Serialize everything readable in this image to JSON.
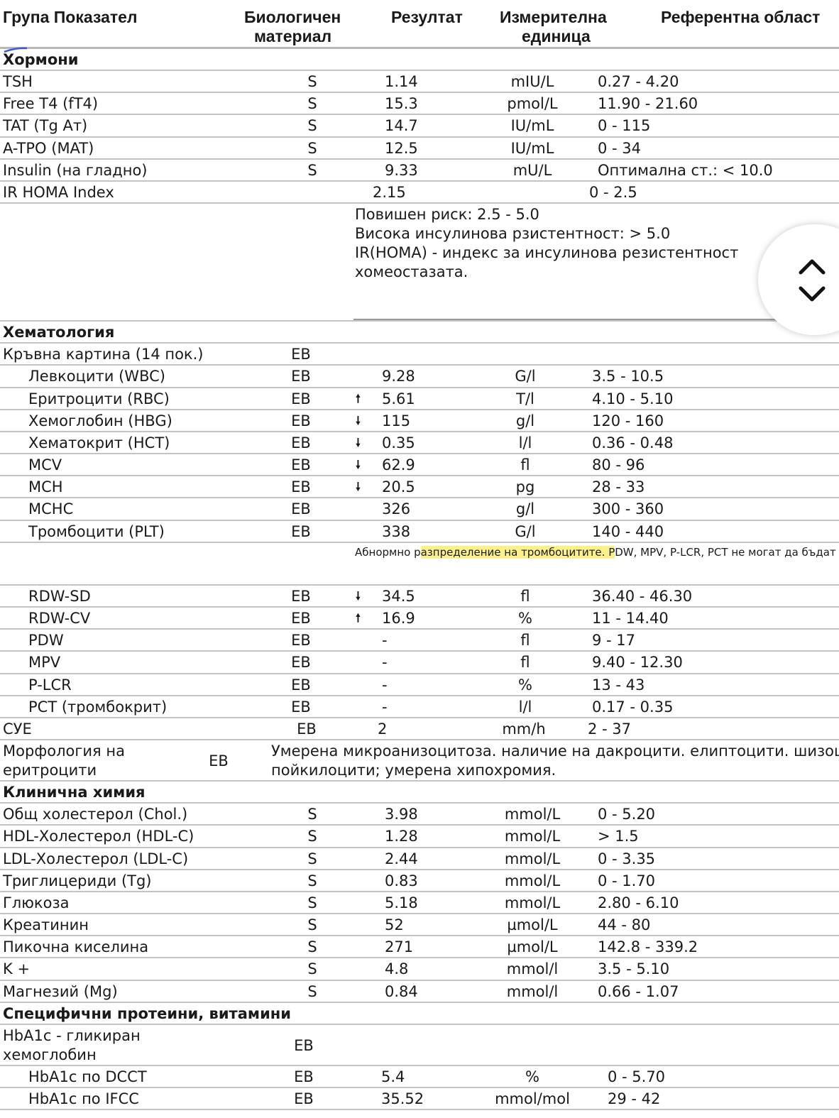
{
  "header": {
    "col_name": "Група Показател",
    "col_material": [
      "Биологичен",
      "материал"
    ],
    "col_result": "Резултат",
    "col_unit": [
      "Измерителна",
      "единица"
    ],
    "col_ref": "Референтна област"
  },
  "sections": [
    {
      "title": "Хормони",
      "rows": [
        {
          "name": "TSH",
          "material": "S",
          "result": "1.14",
          "unit": "mIU/L",
          "ref": "0.27 - 4.20"
        },
        {
          "name": "Free T4 (fT4)",
          "material": "S",
          "result": "15.3",
          "unit": "pmol/L",
          "ref": "11.90 - 21.60"
        },
        {
          "name": "TAT (Tg Aт)",
          "material": "S",
          "result": "14.7",
          "unit": "IU/mL",
          "ref": "0 - 115"
        },
        {
          "name": "A-TPO (MAT)",
          "material": "S",
          "result": "12.5",
          "unit": "IU/mL",
          "ref": "0 - 34"
        },
        {
          "name": "Insulin (на гладно)",
          "material": "S",
          "result": "9.33",
          "unit": "mU/L",
          "ref": "Оптимална ст.: < 10.0"
        },
        {
          "name": "IR HOMA Index",
          "result": "2.15",
          "ref": "0 - 2.5",
          "kind": "homa"
        },
        {
          "kind": "notes",
          "lines": [
            "Повишен риск: 2.5 - 5.0",
            "Висока инсулинова рзистентност: > 5.0",
            "IR(HOMA) - индекс за инсулинова резистентност",
            "хомеостазата."
          ]
        }
      ]
    },
    {
      "title": "Хематология",
      "rows": [
        {
          "name": "Кръвна картина (14 пок.)",
          "material": "ЕВ"
        },
        {
          "name": "Левкоцити (WBC)",
          "indent": true,
          "material": "ЕВ",
          "result": "9.28",
          "unit": "G/l",
          "ref": "3.5 - 10.5"
        },
        {
          "name": "Еритроцити (RBC)",
          "indent": true,
          "material": "ЕВ",
          "flag": "up",
          "result": "5.61",
          "unit": "T/l",
          "ref": "4.10 - 5.10"
        },
        {
          "name": "Хемоглобин (HBG)",
          "indent": true,
          "material": "ЕВ",
          "flag": "down",
          "result": "115",
          "unit": "g/l",
          "ref": "120 - 160"
        },
        {
          "name": "Хематокрит (HCT)",
          "indent": true,
          "material": "ЕВ",
          "flag": "down",
          "result": "0.35",
          "unit": "l/l",
          "ref": "0.36 - 0.48"
        },
        {
          "name": "MCV",
          "indent": true,
          "material": "ЕВ",
          "flag": "down",
          "result": "62.9",
          "unit": "fl",
          "ref": "80 - 96"
        },
        {
          "name": "MCH",
          "indent": true,
          "material": "ЕВ",
          "flag": "down",
          "result": "20.5",
          "unit": "pg",
          "ref": "28 - 33"
        },
        {
          "name": "MCHC",
          "indent": true,
          "material": "ЕВ",
          "result": "326",
          "unit": "g/l",
          "ref": "300 - 360"
        },
        {
          "name": "Тромбоцити (PLT)",
          "indent": true,
          "material": "ЕВ",
          "result": "338",
          "unit": "G/l",
          "ref": "140 - 440"
        },
        {
          "kind": "note2",
          "parts": [
            "Абнормно р",
            "азпределение на тромбоцитите. P",
            "DW, MPV, P-LCR, PCT не могат да бъдат"
          ]
        },
        {
          "name": "RDW-SD",
          "indent": true,
          "material": "ЕВ",
          "flag": "down",
          "result": "34.5",
          "unit": "fl",
          "ref": "36.40 - 46.30"
        },
        {
          "name": "RDW-CV",
          "indent": true,
          "material": "ЕВ",
          "flag": "up",
          "result": "16.9",
          "unit": "%",
          "ref": "11 - 14.40"
        },
        {
          "name": "PDW",
          "indent": true,
          "material": "ЕВ",
          "result": "-",
          "unit": "fl",
          "ref": "9 - 17"
        },
        {
          "name": "MPV",
          "indent": true,
          "material": "ЕВ",
          "result": "-",
          "unit": "fl",
          "ref": "9.40 - 12.30"
        },
        {
          "name": "P-LCR",
          "indent": true,
          "material": "ЕВ",
          "result": "-",
          "unit": "%",
          "ref": "13 - 43"
        },
        {
          "name": "PCT (тромбокрит)",
          "indent": true,
          "material": "ЕВ",
          "result": "-",
          "unit": "l/l",
          "ref": "0.17 - 0.35"
        },
        {
          "name": "СУЕ",
          "material": "ЕВ",
          "result": "2",
          "unit": "mm/h",
          "ref": "2 - 37",
          "kind": "sue"
        },
        {
          "kind": "morph",
          "name": [
            "Морфология на",
            "еритроцити"
          ],
          "material": "ЕВ",
          "text": [
            "Умерена микроанизоцитоза. наличие на дакроцити. елиптоцити. шизоцити",
            "пойкилоцити; умерена хипохромия."
          ]
        }
      ]
    },
    {
      "title": "Клинична химия",
      "rows": [
        {
          "name": "Общ холестерол (Chol.)",
          "material": "S",
          "result": "3.98",
          "unit": "mmol/L",
          "ref": "0 - 5.20"
        },
        {
          "name": "HDL-Холестерол (HDL-C)",
          "material": "S",
          "result": "1.28",
          "unit": "mmol/L",
          "ref": "> 1.5"
        },
        {
          "name": "LDL-Холестерол (LDL-C)",
          "material": "S",
          "result": "2.44",
          "unit": "mmol/L",
          "ref": "0 - 3.35"
        },
        {
          "name": "Триглицериди (Tg)",
          "material": "S",
          "result": "0.83",
          "unit": "mmol/L",
          "ref": "0 - 1.70"
        },
        {
          "name": "Глюкоза",
          "material": "S",
          "result": "5.18",
          "unit": "mmol/L",
          "ref": "2.80 - 6.10"
        },
        {
          "name": "Креатинин",
          "material": "S",
          "result": "52",
          "unit": "µmol/L",
          "ref": "44 - 80"
        },
        {
          "name": "Пикочна киселина",
          "material": "S",
          "result": "271",
          "unit": "µmol/L",
          "ref": "142.8 - 339.2"
        },
        {
          "name": "K +",
          "material": "S",
          "result": "4.8",
          "unit": "mmol/l",
          "ref": "3.5 - 5.10"
        },
        {
          "name": "Магнезий (Mg)",
          "material": "S",
          "result": "0.84",
          "unit": "mmol/l",
          "ref": "0.66 - 1.07"
        }
      ]
    },
    {
      "title": "Специфични протеини, витамини",
      "rows": [
        {
          "kind": "tallname",
          "name": [
            "HbA1c - гликиран",
            "хемоглобин"
          ],
          "material": "ЕВ"
        },
        {
          "name": "HbA1c по DCCT",
          "indent": true,
          "material": "ЕВ",
          "result": "5.4",
          "unit": "%",
          "ref": "0 - 5.70"
        },
        {
          "name": "HbA1c по IFCC",
          "indent": true,
          "material": "ЕВ",
          "result": "35.52",
          "unit": "mmol/mol",
          "ref": "29 - 42"
        }
      ]
    }
  ],
  "flags": {
    "up": "🠕",
    "down": "🠗"
  },
  "colors": {
    "highlight": "#fbf08a",
    "divider": "#c4c4c4"
  },
  "scroll_button": {
    "icons": [
      "chevron-up-icon",
      "chevron-down-icon"
    ]
  }
}
